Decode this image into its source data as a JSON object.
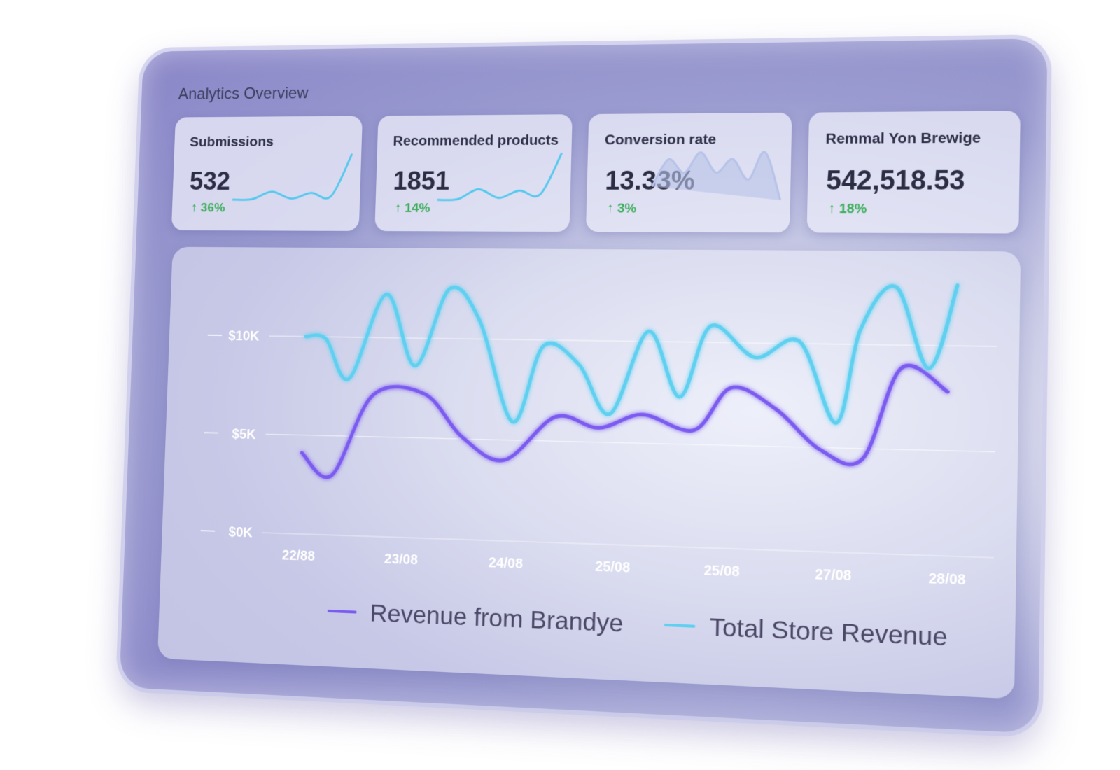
{
  "title": "Analytics Overview",
  "cards": [
    {
      "label": "Submissions",
      "value": "532",
      "delta": "↑ 36%",
      "trend": [
        1,
        1.1,
        2.4,
        1.2,
        2.2,
        1.6,
        9
      ],
      "trend_color": "#55c8ee"
    },
    {
      "label": "Recommended products",
      "value": "1851",
      "delta": "↑ 14%",
      "trend": [
        1,
        1.1,
        2.6,
        1.3,
        2.4,
        1.8,
        8
      ],
      "trend_color": "#55c8ee"
    },
    {
      "label": "Conversion rate",
      "value": "13.33%",
      "delta": "↑ 3%",
      "trend": [
        2,
        4,
        3,
        4.5,
        3,
        4,
        2.5,
        4.5,
        1
      ],
      "trend_color": "#b7c3e8"
    },
    {
      "label": "Remmal Yon Brewige",
      "value": "542,518.53",
      "delta": "↑ 18%"
    }
  ],
  "chart_data": {
    "type": "line",
    "xlim": [
      -0.3,
      6.4
    ],
    "xticks": [
      {
        "value": 0,
        "label": "22/88"
      },
      {
        "value": 1,
        "label": "23/08"
      },
      {
        "value": 2,
        "label": "24/08"
      },
      {
        "value": 3,
        "label": "25/08"
      },
      {
        "value": 4,
        "label": "25/08"
      },
      {
        "value": 5,
        "label": "27/08"
      },
      {
        "value": 6,
        "label": "28/08"
      }
    ],
    "ylim": [
      0,
      13.5
    ],
    "yticks": [
      {
        "value": 0,
        "label": "$0K"
      },
      {
        "value": 5,
        "label": "$5K"
      },
      {
        "value": 10,
        "label": "$10K"
      }
    ],
    "grid": true,
    "series": [
      {
        "name": "Revenue from Brandye",
        "color": "#7b5cf0",
        "x": [
          0,
          0.3,
          0.68,
          1.18,
          1.55,
          1.96,
          2.43,
          2.84,
          3.24,
          3.72,
          4.05,
          4.46,
          4.86,
          5.24,
          5.57,
          5.98
        ],
        "values": [
          4.1,
          3.0,
          7.1,
          7.2,
          5.1,
          4.0,
          6.2,
          5.7,
          6.4,
          5.7,
          7.8,
          6.8,
          4.9,
          4.5,
          8.9,
          7.8
        ]
      },
      {
        "name": "Total Store Revenue",
        "color": "#5fd0f0",
        "x": [
          0,
          0.2,
          0.44,
          0.78,
          1.08,
          1.39,
          1.69,
          2.03,
          2.3,
          2.64,
          2.94,
          3.28,
          3.58,
          3.85,
          4.26,
          4.66,
          5.0,
          5.2,
          5.51,
          5.81,
          6.05
        ],
        "values": [
          10,
          9.9,
          7.9,
          12.2,
          8.6,
          12.5,
          10.9,
          5.9,
          9.7,
          8.8,
          6.4,
          10.5,
          7.3,
          10.8,
          9.3,
          10.1,
          6.2,
          10.7,
          12.8,
          8.9,
          12.9
        ]
      }
    ]
  }
}
